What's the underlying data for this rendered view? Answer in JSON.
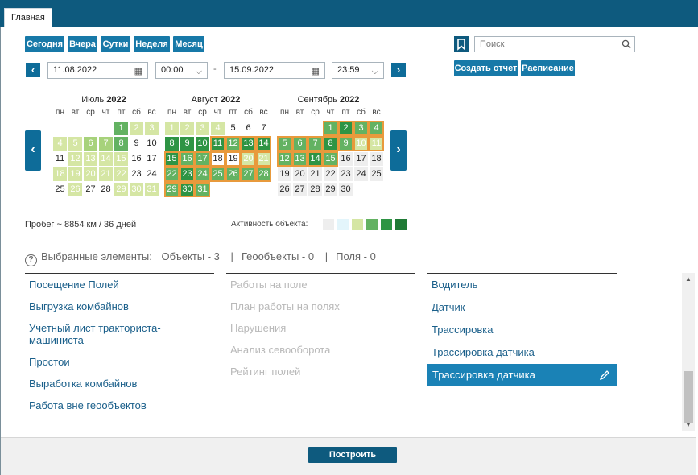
{
  "tabs": [
    {
      "label": "Главная"
    }
  ],
  "period_buttons": [
    "Сегодня",
    "Вчера",
    "Сутки",
    "Неделя",
    "Месяц"
  ],
  "search": {
    "placeholder": "Поиск"
  },
  "actions": {
    "create_report": "Создать отчет",
    "schedule": "Расписание"
  },
  "date_range": {
    "from_date": "11.08.2022",
    "from_time": "00:00",
    "separator": "-",
    "to_date": "15.09.2022",
    "to_time": "23:59"
  },
  "calendar": {
    "weekdays": [
      "пн",
      "вт",
      "ср",
      "чт",
      "пт",
      "сб",
      "вс"
    ],
    "months": [
      {
        "name": "Июль",
        "year": "2022",
        "days": [
          {
            "d": "1",
            "lvl": 3
          },
          {
            "d": "2",
            "lvl": 1
          },
          {
            "d": "3",
            "lvl": 1
          },
          {
            "d": "4",
            "lvl": 1
          },
          {
            "d": "5",
            "lvl": 1
          },
          {
            "d": "6",
            "lvl": 2
          },
          {
            "d": "7",
            "lvl": 2
          },
          {
            "d": "8",
            "lvl": 3
          },
          {
            "d": "9",
            "lvl": 0
          },
          {
            "d": "10",
            "lvl": 0
          },
          {
            "d": "11",
            "lvl": 0
          },
          {
            "d": "12",
            "lvl": 1
          },
          {
            "d": "13",
            "lvl": 1
          },
          {
            "d": "14",
            "lvl": 1
          },
          {
            "d": "15",
            "lvl": 1
          },
          {
            "d": "16",
            "lvl": 0
          },
          {
            "d": "17",
            "lvl": 0
          },
          {
            "d": "18",
            "lvl": 1
          },
          {
            "d": "19",
            "lvl": 1
          },
          {
            "d": "20",
            "lvl": 1
          },
          {
            "d": "21",
            "lvl": 1
          },
          {
            "d": "22",
            "lvl": 1
          },
          {
            "d": "23",
            "lvl": 0
          },
          {
            "d": "24",
            "lvl": 0
          },
          {
            "d": "25",
            "lvl": 0
          },
          {
            "d": "26",
            "lvl": 1
          },
          {
            "d": "27",
            "lvl": 0
          },
          {
            "d": "28",
            "lvl": 0
          },
          {
            "d": "29",
            "lvl": 1
          },
          {
            "d": "30",
            "lvl": 1
          },
          {
            "d": "31",
            "lvl": 1
          }
        ]
      },
      {
        "name": "Август",
        "year": "2022",
        "days": [
          {
            "d": "1",
            "lvl": 1
          },
          {
            "d": "2",
            "lvl": 1
          },
          {
            "d": "3",
            "lvl": 1
          },
          {
            "d": "4",
            "lvl": 1
          },
          {
            "d": "5",
            "lvl": 0
          },
          {
            "d": "6",
            "lvl": 0
          },
          {
            "d": "7",
            "lvl": 0
          },
          {
            "d": "8",
            "lvl": 4
          },
          {
            "d": "9",
            "lvl": 4
          },
          {
            "d": "10",
            "lvl": 4
          },
          {
            "d": "11",
            "lvl": 4
          },
          {
            "d": "12",
            "lvl": 3
          },
          {
            "d": "13",
            "lvl": 4
          },
          {
            "d": "14",
            "lvl": 4
          },
          {
            "d": "15",
            "lvl": 4
          },
          {
            "d": "16",
            "lvl": 3
          },
          {
            "d": "17",
            "lvl": 3
          },
          {
            "d": "18",
            "lvl": 0
          },
          {
            "d": "19",
            "lvl": 0
          },
          {
            "d": "20",
            "lvl": 1
          },
          {
            "d": "21",
            "lvl": 1
          },
          {
            "d": "22",
            "lvl": 3
          },
          {
            "d": "23",
            "lvl": 4
          },
          {
            "d": "24",
            "lvl": 3
          },
          {
            "d": "25",
            "lvl": 3
          },
          {
            "d": "26",
            "lvl": 3
          },
          {
            "d": "27",
            "lvl": 3
          },
          {
            "d": "28",
            "lvl": 3
          },
          {
            "d": "29",
            "lvl": 3
          },
          {
            "d": "30",
            "lvl": 4
          },
          {
            "d": "31",
            "lvl": 3
          }
        ]
      },
      {
        "name": "Сентябрь",
        "year": "2022",
        "days": [
          {
            "d": "1",
            "lvl": 3
          },
          {
            "d": "2",
            "lvl": 4
          },
          {
            "d": "3",
            "lvl": 3
          },
          {
            "d": "4",
            "lvl": 3
          },
          {
            "d": "5",
            "lvl": 3
          },
          {
            "d": "6",
            "lvl": 3
          },
          {
            "d": "7",
            "lvl": 3
          },
          {
            "d": "8",
            "lvl": 4
          },
          {
            "d": "9",
            "lvl": 3
          },
          {
            "d": "10",
            "lvl": 1
          },
          {
            "d": "11",
            "lvl": 1
          },
          {
            "d": "12",
            "lvl": 3
          },
          {
            "d": "13",
            "lvl": 3
          },
          {
            "d": "14",
            "lvl": 4
          },
          {
            "d": "15",
            "lvl": 3
          },
          {
            "d": "16",
            "lvl": -1
          },
          {
            "d": "17",
            "lvl": -1
          },
          {
            "d": "18",
            "lvl": -1
          },
          {
            "d": "19",
            "lvl": -1
          },
          {
            "d": "20",
            "lvl": -1
          },
          {
            "d": "21",
            "lvl": -1
          },
          {
            "d": "22",
            "lvl": -1
          },
          {
            "d": "23",
            "lvl": -1
          },
          {
            "d": "24",
            "lvl": -1
          },
          {
            "d": "25",
            "lvl": -1
          },
          {
            "d": "26",
            "lvl": -1
          },
          {
            "d": "27",
            "lvl": -1
          },
          {
            "d": "28",
            "lvl": -1
          },
          {
            "d": "29",
            "lvl": -1
          },
          {
            "d": "30",
            "lvl": -1
          }
        ]
      }
    ],
    "selected_range": {
      "from": "11.08.2022",
      "to": "15.09.2022"
    }
  },
  "stats": {
    "mileage": "Пробег ~ 8854 км / 36 дней",
    "activity_label": "Активность объекта:"
  },
  "activity_legend_colors": [
    "#eeeeee",
    "#e3f5fb",
    "#d5e6a4",
    "#63b262",
    "#2e9444",
    "#1f7a35"
  ],
  "selected": {
    "label": "Выбранные элементы:",
    "objects": "Объекты - 3",
    "geo": "Геообъекты - 0",
    "fields": "Поля - 0",
    "sep": "|"
  },
  "reports_col1": [
    "Посещение Полей",
    "Выгрузка комбайнов",
    "Учетный лист тракториста-\nмашиниста",
    "Простои",
    "Выработка комбайнов",
    "Работа вне геообъектов"
  ],
  "reports_col2": [
    "Работы на поле",
    "План работы на полях",
    "Нарушения",
    "Анализ севооборота",
    "Рейтинг полей"
  ],
  "reports_col3": [
    "Водитель",
    "Датчик",
    "Трассировка",
    "Трассировка датчика"
  ],
  "active_report": "Трассировка датчика",
  "build_button": "Построить"
}
